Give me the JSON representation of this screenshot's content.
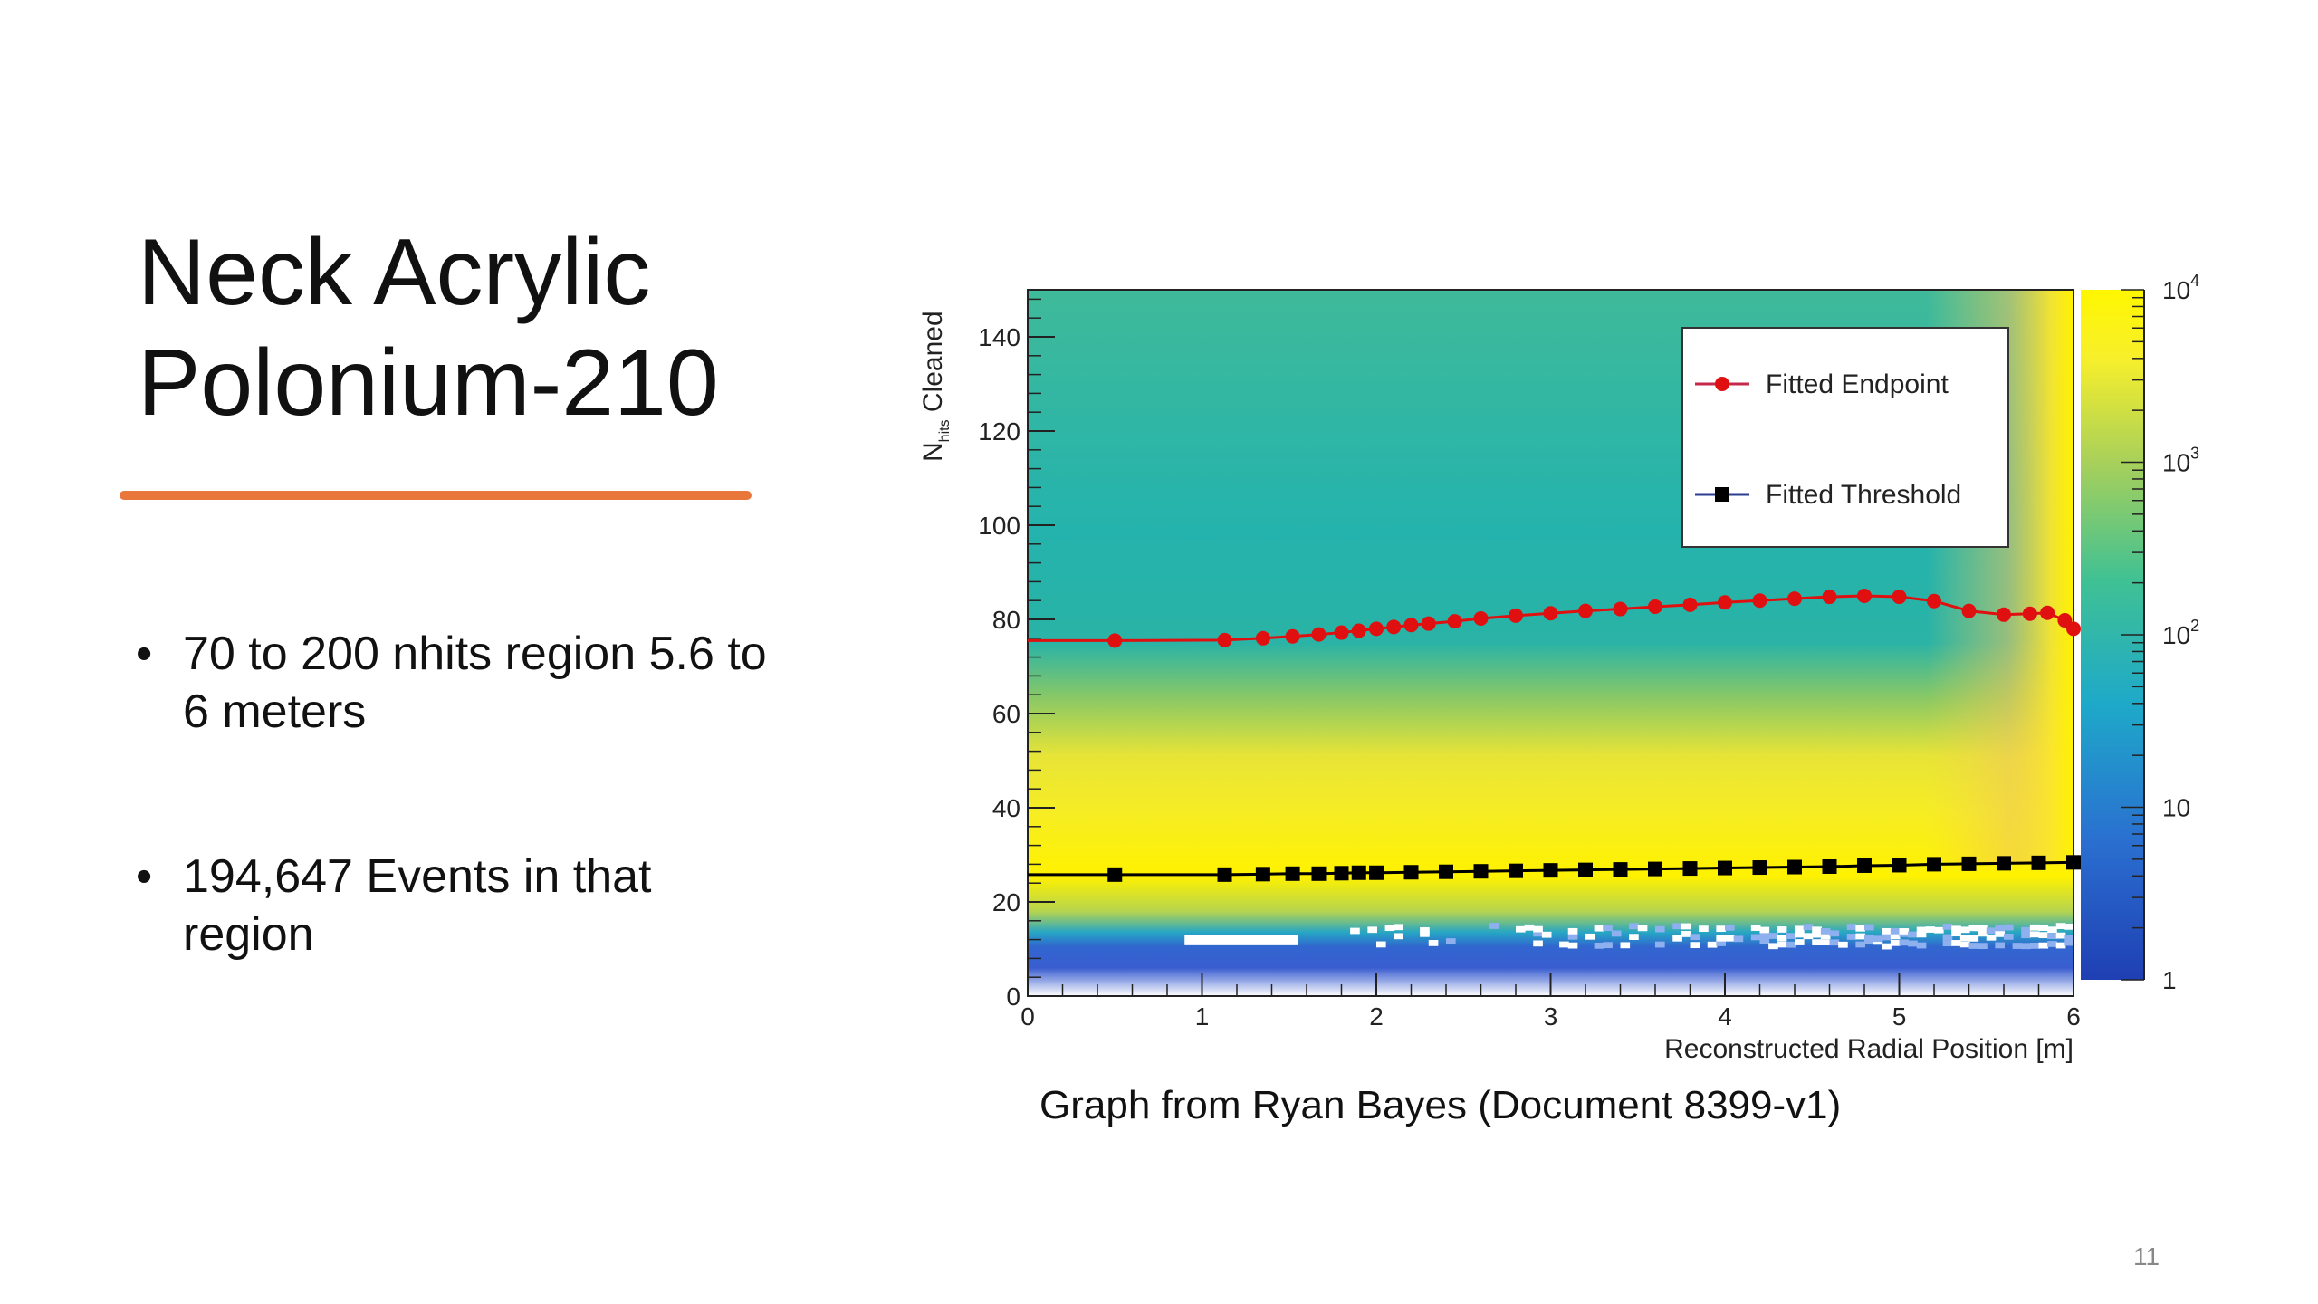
{
  "slide": {
    "title_line1": "Neck Acrylic",
    "title_line2": "Polonium-210",
    "accent_color": "#e9763a",
    "bullets": [
      "70 to 200 nhits region 5.6 to 6 meters",
      "194,647 Events in that region"
    ],
    "caption": "Graph from Ryan Bayes (Document 8399-v1)",
    "page_number": "11"
  },
  "chart_data": {
    "type": "heatmap",
    "xlabel": "Reconstructed Radial Position [m]",
    "ylabel_main": "N",
    "ylabel_sub": "hits",
    "ylabel_rest": " Cleaned",
    "xlim": [
      0,
      6
    ],
    "ylim": [
      0,
      150
    ],
    "x_ticks": [
      "0",
      "1",
      "2",
      "3",
      "4",
      "5",
      "6"
    ],
    "y_ticks": [
      "0",
      "20",
      "40",
      "60",
      "80",
      "100",
      "120",
      "140"
    ],
    "colorbar": {
      "scale": "log",
      "range": [
        1,
        10000
      ],
      "tick_labels": [
        {
          "base": "1",
          "exp": ""
        },
        {
          "base": "10",
          "exp": ""
        },
        {
          "base": "10",
          "exp": "2"
        },
        {
          "base": "10",
          "exp": "3"
        },
        {
          "base": "10",
          "exp": "4"
        }
      ],
      "colors": [
        "#1f3fb3",
        "#2a7fd1",
        "#21b4b8",
        "#40c193",
        "#a8d05a",
        "#f7ef2b",
        "#fff700"
      ]
    },
    "legend_position": "top-right",
    "series": [
      {
        "name": "Fitted Endpoint",
        "color": "#e01010",
        "marker": "circle",
        "x": [
          0.5,
          1.13,
          1.35,
          1.52,
          1.67,
          1.8,
          1.9,
          2.0,
          2.1,
          2.2,
          2.3,
          2.45,
          2.6,
          2.8,
          3.0,
          3.2,
          3.4,
          3.6,
          3.8,
          4.0,
          4.2,
          4.4,
          4.6,
          4.8,
          5.0,
          5.2,
          5.4,
          5.6,
          5.75,
          5.85,
          5.95,
          6.0
        ],
        "y": [
          75.5,
          75.6,
          76.0,
          76.4,
          76.8,
          77.2,
          77.6,
          78.0,
          78.4,
          78.8,
          79.1,
          79.6,
          80.2,
          80.8,
          81.3,
          81.8,
          82.2,
          82.7,
          83.1,
          83.6,
          84.0,
          84.4,
          84.8,
          85.0,
          84.8,
          83.9,
          81.8,
          81.0,
          81.2,
          81.4,
          79.8,
          78.0
        ]
      },
      {
        "name": "Fitted Threshold",
        "color": "#000000",
        "marker": "square",
        "x": [
          0.5,
          1.13,
          1.35,
          1.52,
          1.67,
          1.8,
          1.9,
          2.0,
          2.2,
          2.4,
          2.6,
          2.8,
          3.0,
          3.2,
          3.4,
          3.6,
          3.8,
          4.0,
          4.2,
          4.4,
          4.6,
          4.8,
          5.0,
          5.2,
          5.4,
          5.6,
          5.8,
          6.0
        ],
        "y": [
          25.8,
          25.8,
          25.9,
          26.0,
          26.0,
          26.1,
          26.2,
          26.2,
          26.3,
          26.4,
          26.5,
          26.6,
          26.7,
          26.8,
          26.9,
          27.0,
          27.1,
          27.2,
          27.3,
          27.4,
          27.5,
          27.7,
          27.8,
          28.0,
          28.1,
          28.2,
          28.3,
          28.4
        ]
      }
    ]
  }
}
